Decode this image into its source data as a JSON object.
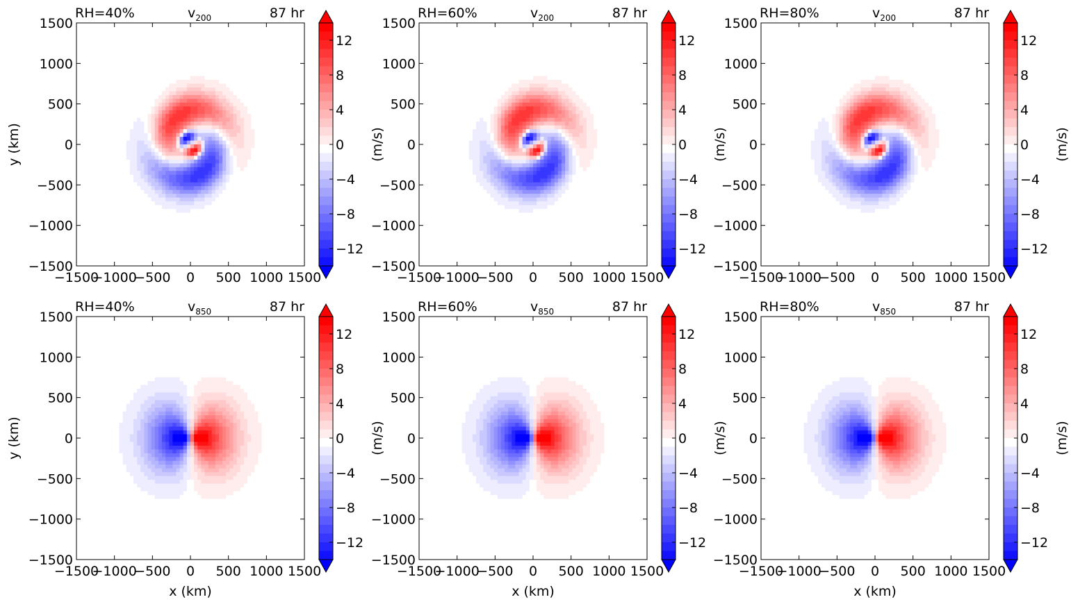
{
  "chart_data": [
    {
      "type": "heatmap",
      "title_left": "RH=40%",
      "title_center": "v",
      "title_sub": "200",
      "title_right": "87 hr",
      "xlabel": "",
      "ylabel": "y (km)",
      "cbar_label": "(m/s)",
      "xlim": [
        -1500,
        1500
      ],
      "ylim": [
        -1500,
        1500
      ],
      "xticks": [
        -1500,
        -1000,
        -500,
        0,
        500,
        1000,
        1500
      ],
      "yticks": [
        -1500,
        -1000,
        -500,
        0,
        500,
        1000,
        1500
      ],
      "xtick_labels": [
        "−1500",
        "−1000",
        "−500",
        "0",
        "500",
        "1000",
        "1500"
      ],
      "ytick_labels": [
        "−1500",
        "−1000",
        "−500",
        "0",
        "500",
        "1000",
        "1500"
      ],
      "cbar_range": [
        -14,
        14
      ],
      "cbar_ticks": [
        -12,
        -8,
        -4,
        0,
        4,
        8,
        12
      ],
      "cbar_tick_labels": [
        "−12",
        "−8",
        "−4",
        "0",
        "4",
        "8",
        "12"
      ],
      "pattern": "spiral",
      "peak": 14,
      "colormap": "bwr"
    },
    {
      "type": "heatmap",
      "title_left": "RH=60%",
      "title_center": "v",
      "title_sub": "200",
      "title_right": "87 hr",
      "xlabel": "",
      "ylabel": "",
      "cbar_label": "(m/s)",
      "xlim": [
        -1500,
        1500
      ],
      "ylim": [
        -1500,
        1500
      ],
      "xticks": [
        -1500,
        -1000,
        -500,
        0,
        500,
        1000,
        1500
      ],
      "yticks": [
        -1500,
        -1000,
        -500,
        0,
        500,
        1000,
        1500
      ],
      "xtick_labels": [
        "−1500",
        "−1000",
        "−500",
        "0",
        "500",
        "1000",
        "1500"
      ],
      "ytick_labels": [
        "−1500",
        "−1000",
        "−500",
        "0",
        "500",
        "1000",
        "1500"
      ],
      "cbar_range": [
        -14,
        14
      ],
      "cbar_ticks": [
        -12,
        -8,
        -4,
        0,
        4,
        8,
        12
      ],
      "cbar_tick_labels": [
        "−12",
        "−8",
        "−4",
        "0",
        "4",
        "8",
        "12"
      ],
      "pattern": "spiral",
      "peak": 14,
      "colormap": "bwr"
    },
    {
      "type": "heatmap",
      "title_left": "RH=80%",
      "title_center": "v",
      "title_sub": "200",
      "title_right": "87 hr",
      "xlabel": "",
      "ylabel": "",
      "cbar_label": "(m/s)",
      "xlim": [
        -1500,
        1500
      ],
      "ylim": [
        -1500,
        1500
      ],
      "xticks": [
        -1500,
        -1000,
        -500,
        0,
        500,
        1000,
        1500
      ],
      "yticks": [
        -1500,
        -1000,
        -500,
        0,
        500,
        1000,
        1500
      ],
      "xtick_labels": [
        "−1500",
        "−1000",
        "−500",
        "0",
        "500",
        "1000",
        "1500"
      ],
      "ytick_labels": [
        "−1500",
        "−1000",
        "−500",
        "0",
        "500",
        "1000",
        "1500"
      ],
      "cbar_range": [
        -14,
        14
      ],
      "cbar_ticks": [
        -12,
        -8,
        -4,
        0,
        4,
        8,
        12
      ],
      "cbar_tick_labels": [
        "−12",
        "−8",
        "−4",
        "0",
        "4",
        "8",
        "12"
      ],
      "pattern": "spiral",
      "peak": 14,
      "colormap": "bwr"
    },
    {
      "type": "heatmap",
      "title_left": "RH=40%",
      "title_center": "v",
      "title_sub": "850",
      "title_right": "87 hr",
      "xlabel": "x (km)",
      "ylabel": "y (km)",
      "cbar_label": "(m/s)",
      "xlim": [
        -1500,
        1500
      ],
      "ylim": [
        -1500,
        1500
      ],
      "xticks": [
        -1500,
        -1000,
        -500,
        0,
        500,
        1000,
        1500
      ],
      "yticks": [
        -1500,
        -1000,
        -500,
        0,
        500,
        1000,
        1500
      ],
      "xtick_labels": [
        "−1500",
        "−1000",
        "−500",
        "0",
        "500",
        "1000",
        "1500"
      ],
      "ytick_labels": [
        "−1500",
        "−1000",
        "−500",
        "0",
        "500",
        "1000",
        "1500"
      ],
      "cbar_range": [
        -14,
        14
      ],
      "cbar_ticks": [
        -12,
        -8,
        -4,
        0,
        4,
        8,
        12
      ],
      "cbar_tick_labels": [
        "−12",
        "−8",
        "−4",
        "0",
        "4",
        "8",
        "12"
      ],
      "pattern": "dipole",
      "peak": 14,
      "colormap": "bwr"
    },
    {
      "type": "heatmap",
      "title_left": "RH=60%",
      "title_center": "v",
      "title_sub": "850",
      "title_right": "87 hr",
      "xlabel": "x (km)",
      "ylabel": "",
      "cbar_label": "(m/s)",
      "xlim": [
        -1500,
        1500
      ],
      "ylim": [
        -1500,
        1500
      ],
      "xticks": [
        -1500,
        -1000,
        -500,
        0,
        500,
        1000,
        1500
      ],
      "yticks": [
        -1500,
        -1000,
        -500,
        0,
        500,
        1000,
        1500
      ],
      "xtick_labels": [
        "−1500",
        "−1000",
        "−500",
        "0",
        "500",
        "1000",
        "1500"
      ],
      "ytick_labels": [
        "−1500",
        "−1000",
        "−500",
        "0",
        "500",
        "1000",
        "1500"
      ],
      "cbar_range": [
        -14,
        14
      ],
      "cbar_ticks": [
        -12,
        -8,
        -4,
        0,
        4,
        8,
        12
      ],
      "cbar_tick_labels": [
        "−12",
        "−8",
        "−4",
        "0",
        "4",
        "8",
        "12"
      ],
      "pattern": "dipole",
      "peak": 14,
      "colormap": "bwr"
    },
    {
      "type": "heatmap",
      "title_left": "RH=80%",
      "title_center": "v",
      "title_sub": "850",
      "title_right": "87 hr",
      "xlabel": "x (km)",
      "ylabel": "",
      "cbar_label": "(m/s)",
      "xlim": [
        -1500,
        1500
      ],
      "ylim": [
        -1500,
        1500
      ],
      "xticks": [
        -1500,
        -1000,
        -500,
        0,
        500,
        1000,
        1500
      ],
      "yticks": [
        -1500,
        -1000,
        -500,
        0,
        500,
        1000,
        1500
      ],
      "xtick_labels": [
        "−1500",
        "−1000",
        "−500",
        "0",
        "500",
        "1000",
        "1500"
      ],
      "ytick_labels": [
        "−1500",
        "−1000",
        "−500",
        "0",
        "500",
        "1000",
        "1500"
      ],
      "cbar_range": [
        -14,
        14
      ],
      "cbar_ticks": [
        -12,
        -8,
        -4,
        0,
        4,
        8,
        12
      ],
      "cbar_tick_labels": [
        "−12",
        "−8",
        "−4",
        "0",
        "4",
        "8",
        "12"
      ],
      "pattern": "dipole",
      "peak": 14,
      "colormap": "bwr"
    }
  ]
}
